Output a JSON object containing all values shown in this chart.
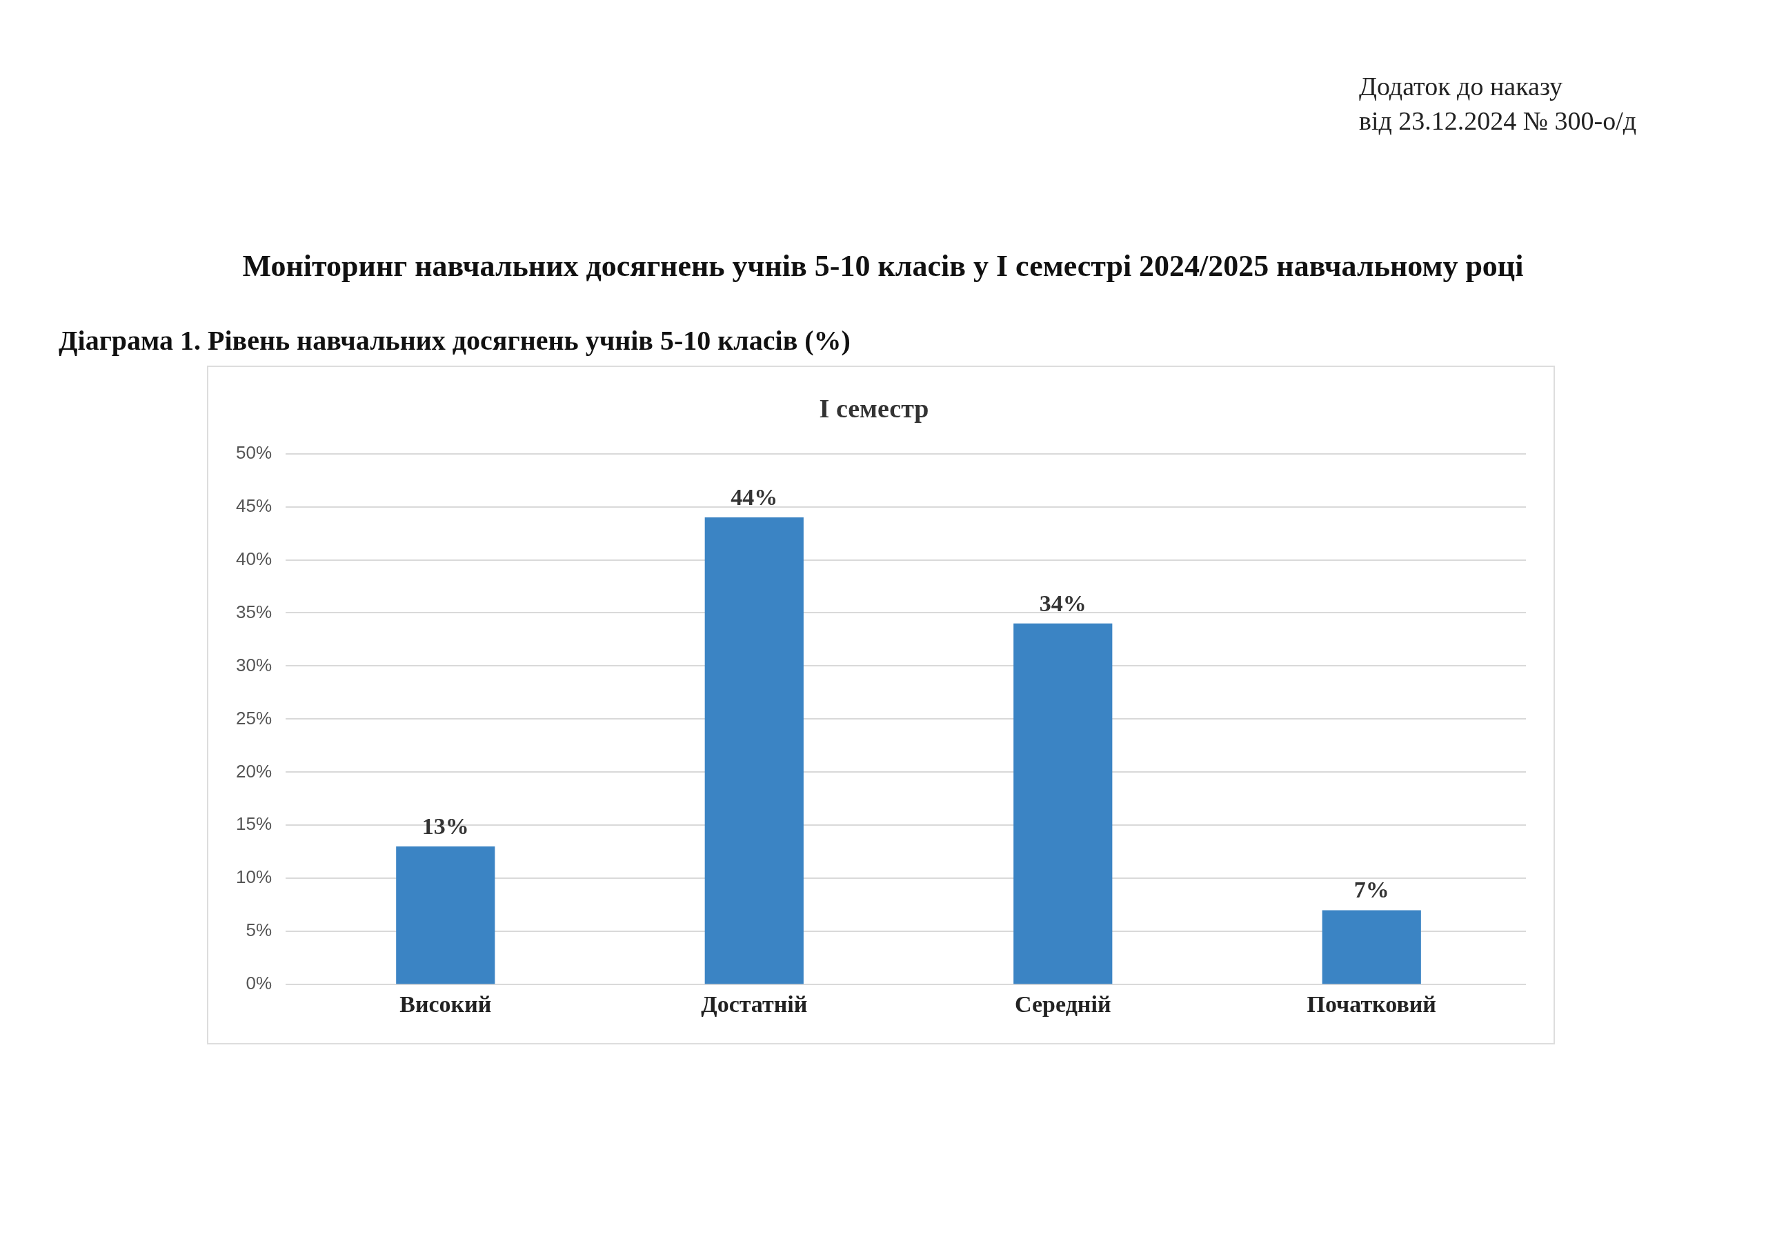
{
  "chart_data": {
    "type": "bar",
    "title": "І семестр",
    "annotations": [
      "Додаток до наказу",
      "від 23.12.2024 № 300-о/д",
      "Моніторинг навчальних досягнень учнів 5-10 класів у І семестрі 2024/2025 навчальному році",
      "Діаграма 1. Рівень навчальних досягнень учнів 5-10 класів (%)"
    ],
    "categories": [
      "Високий",
      "Достатній",
      "Середній",
      "Початковий"
    ],
    "values": [
      13,
      44,
      34,
      7
    ],
    "value_labels": [
      "13%",
      "44%",
      "34%",
      "7%"
    ],
    "color": "#3b84c4",
    "ylim": [
      0,
      50
    ],
    "yticks": [
      {
        "value": 0,
        "label": "0%"
      },
      {
        "value": 5,
        "label": "5%"
      },
      {
        "value": 10,
        "label": "10%"
      },
      {
        "value": 15,
        "label": "15%"
      },
      {
        "value": 20,
        "label": "20%"
      },
      {
        "value": 25,
        "label": "25%"
      },
      {
        "value": 30,
        "label": "30%"
      },
      {
        "value": 35,
        "label": "35%"
      },
      {
        "value": 40,
        "label": "40%"
      },
      {
        "value": 45,
        "label": "45%"
      },
      {
        "value": 50,
        "label": "50%"
      }
    ],
    "grid": "y",
    "legend": false
  }
}
